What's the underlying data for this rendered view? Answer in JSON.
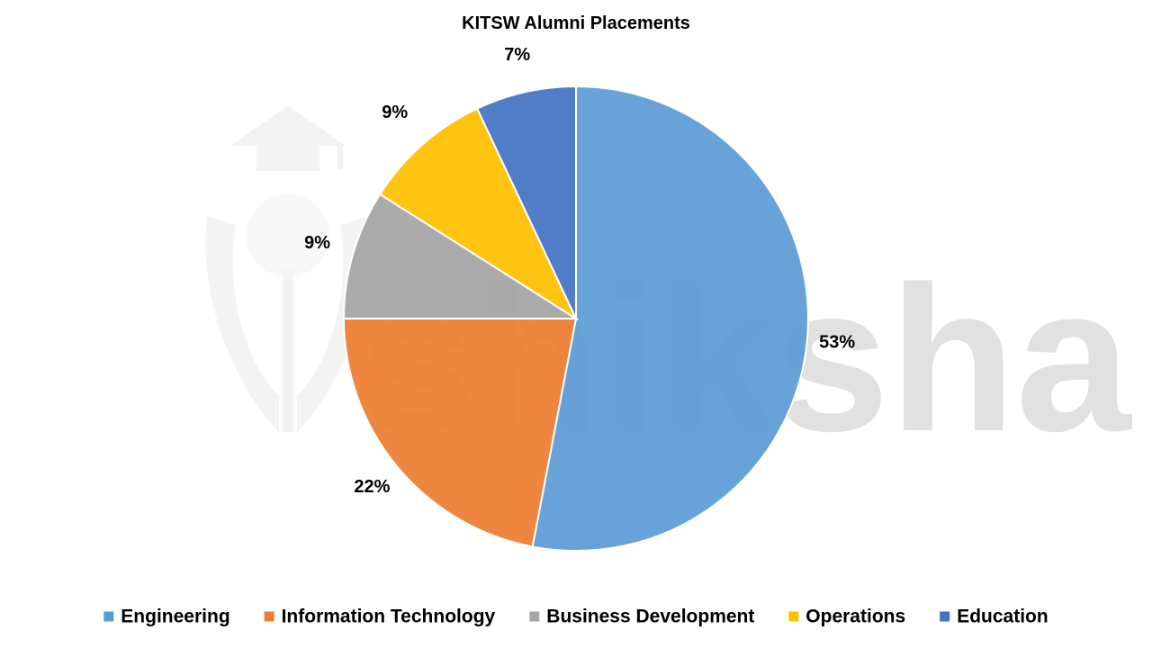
{
  "watermark": {
    "text": "shiksha",
    "text_color": "#c8c8c8",
    "icon": "graduation-cap-icon"
  },
  "chart_data": {
    "type": "pie",
    "title": "KITSW Alumni Placements",
    "categories": [
      "Engineering",
      "Information Technology",
      "Business Development",
      "Operations",
      "Education"
    ],
    "values": [
      53,
      22,
      9,
      9,
      7
    ],
    "labels": [
      "53%",
      "22%",
      "9%",
      "9%",
      "7%"
    ],
    "colors": [
      "#5B9BD5",
      "#ED7D31",
      "#A5A5A5",
      "#FFC000",
      "#4472C4"
    ],
    "start_angle": "12 o'clock",
    "direction": "clockwise",
    "legend_position": "bottom"
  }
}
